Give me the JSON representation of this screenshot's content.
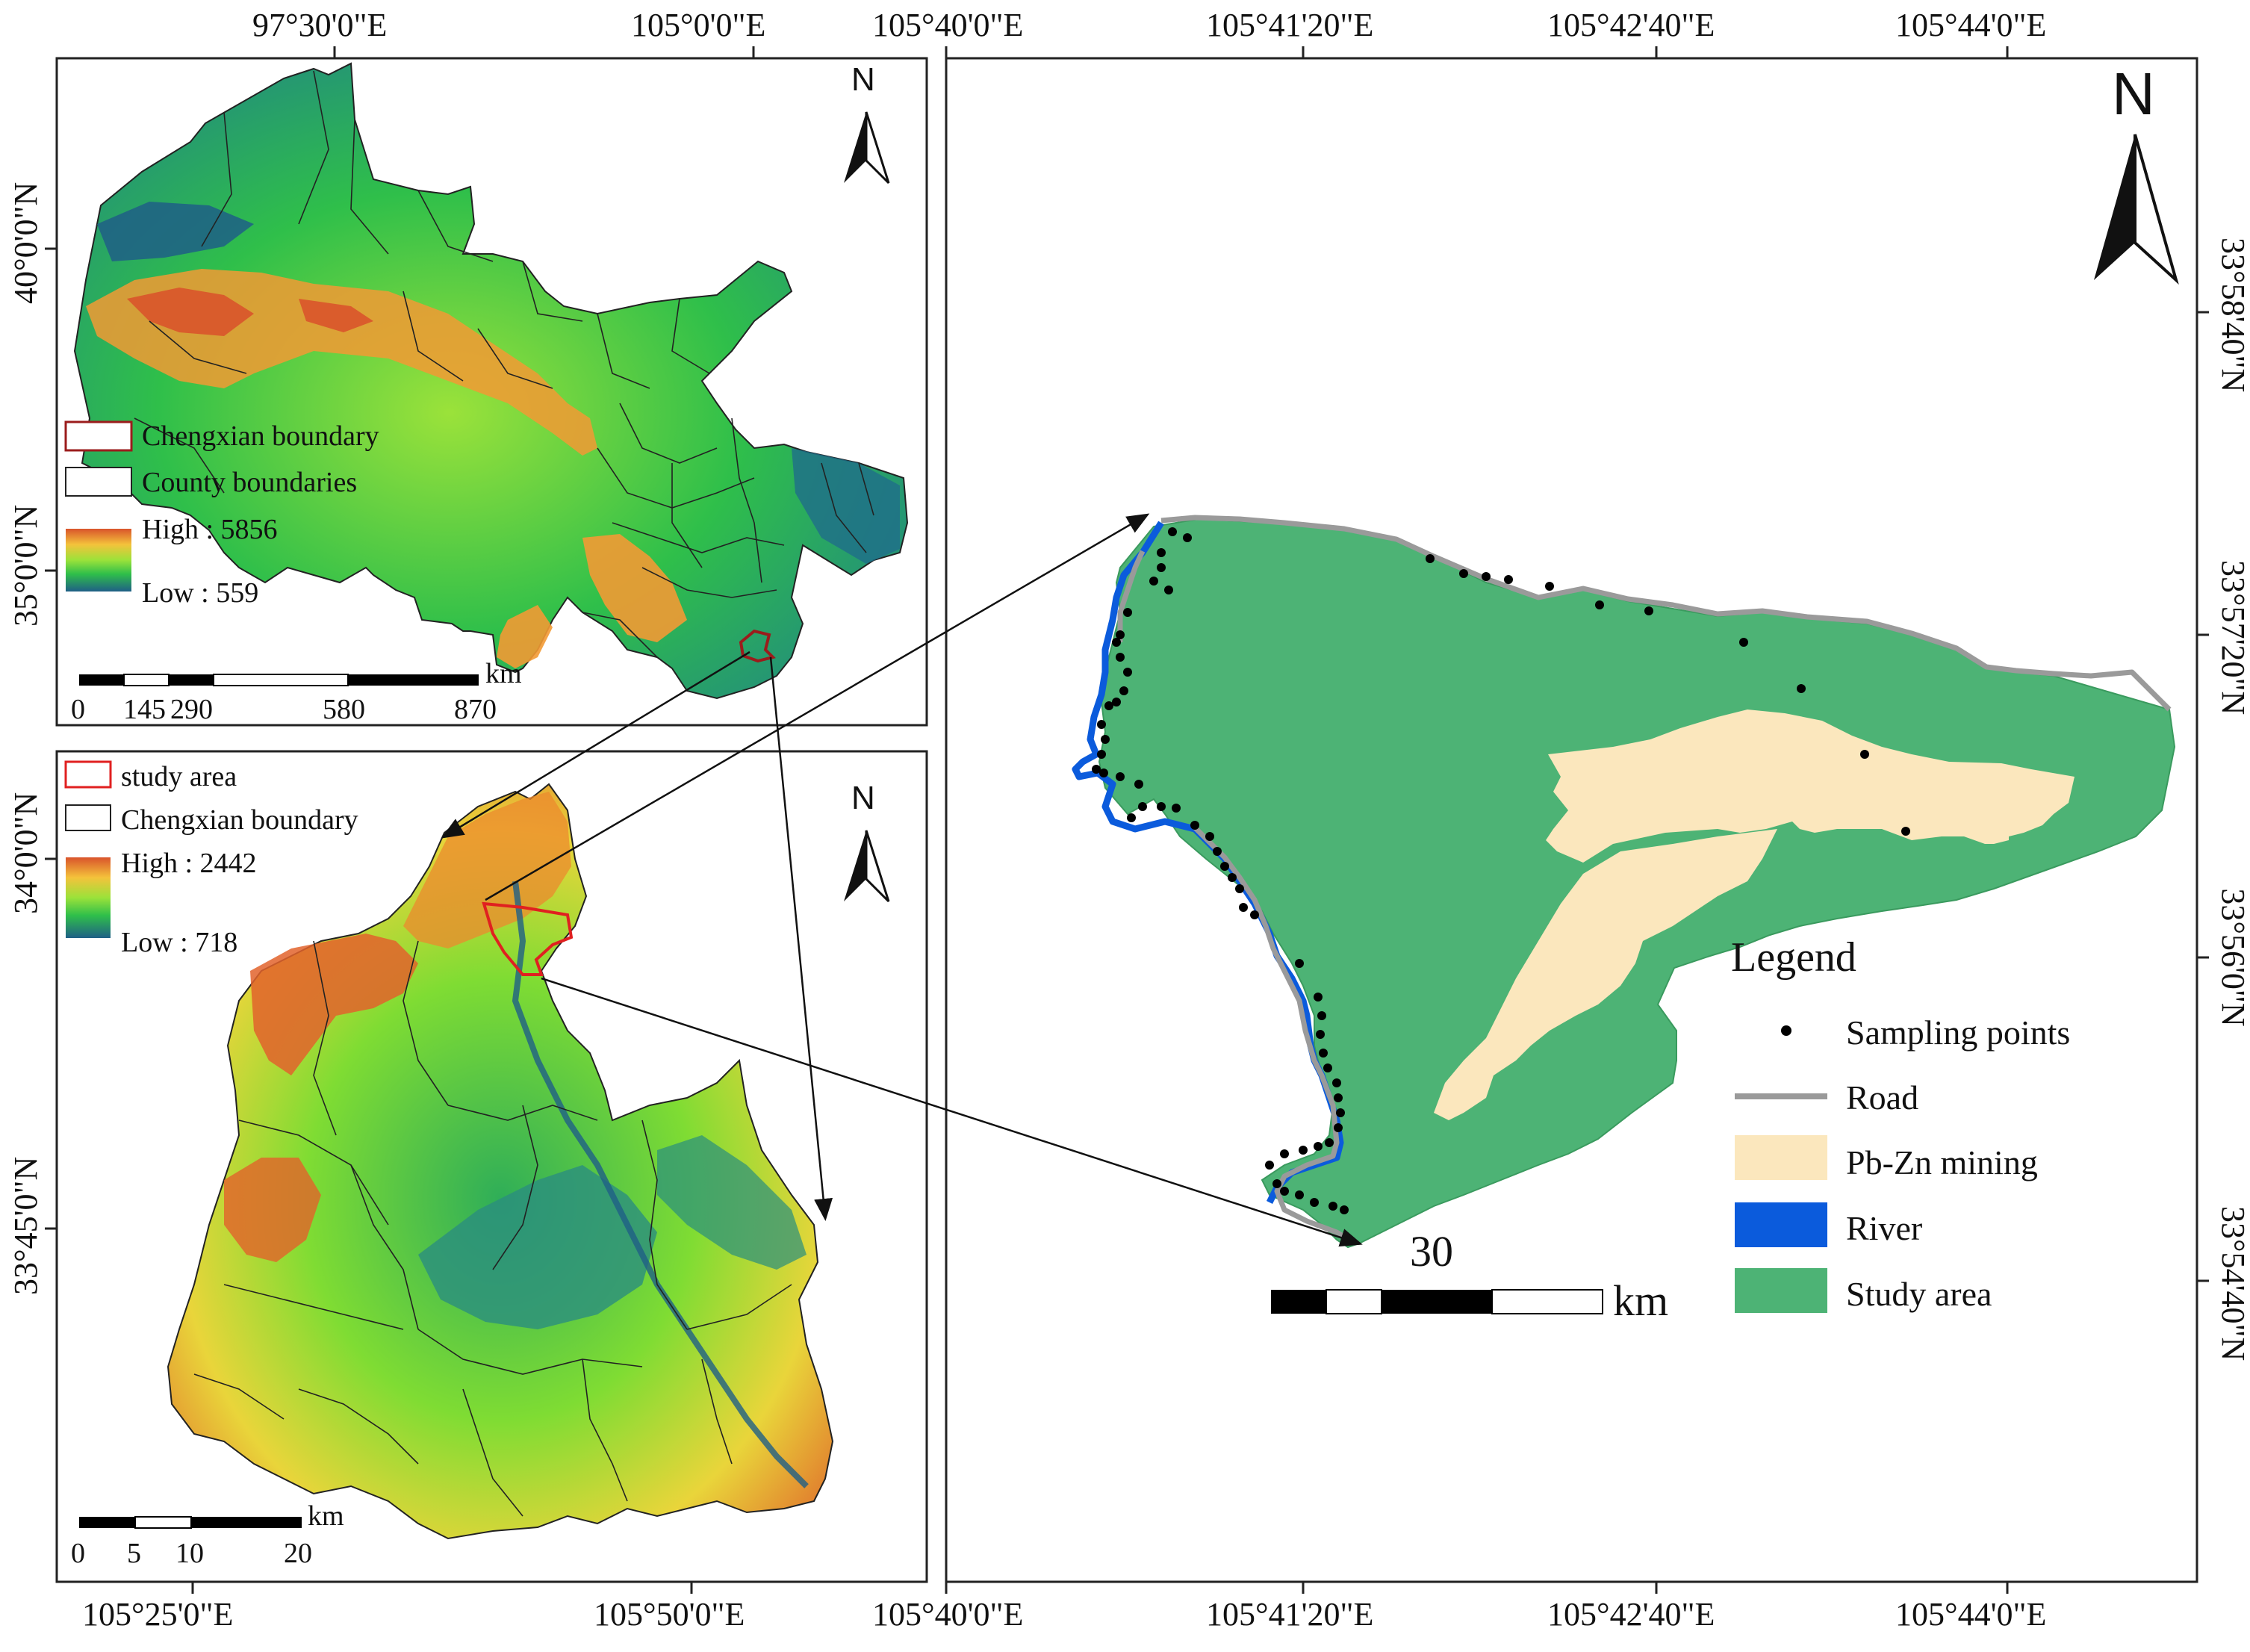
{
  "colors": {
    "frame": "#1a1a1a",
    "study_area": "#4db375",
    "mining": "#fbe7bd",
    "river": "#0b5bdc",
    "road": "#9a9a9a",
    "boundary_red": "#9b1c1c",
    "study_red": "#e02020",
    "dem_high": "#d9542b",
    "dem_mid1": "#f4c23b",
    "dem_mid2": "#9be23a",
    "dem_mid3": "#2fbf4a",
    "dem_low": "#1f6e8a"
  },
  "icons": {
    "north_arrow": "north-arrow-icon"
  },
  "top_map": {
    "top_ticks": [
      "97°30'0\"E",
      "105°0'0\"E"
    ],
    "left_ticks": [
      "40°0'0\"N",
      "35°0'0\"N"
    ],
    "north_label": "N",
    "legend": {
      "item1": "Chengxian boundary",
      "item2": "County boundaries",
      "high": "High : 5856",
      "low": "Low : 559"
    },
    "scale": {
      "unit": "km",
      "labels": [
        "0",
        "145",
        "290",
        "580",
        "870"
      ]
    }
  },
  "bottom_map": {
    "bottom_ticks": [
      "105°25'0\"E",
      "105°50'0\"E"
    ],
    "left_ticks": [
      "34°0'0\"N",
      "33°45'0\"N"
    ],
    "north_label": "N",
    "legend": {
      "item1": "study area",
      "item2": "Chengxian boundary",
      "high": "High : 2442",
      "low": "Low : 718"
    },
    "scale": {
      "unit": "km",
      "labels": [
        "0",
        "5",
        "10",
        "20"
      ]
    }
  },
  "right_map": {
    "top_ticks": [
      "105°40'0\"E",
      "105°41'20\"E",
      "105°42'40\"E",
      "105°44'0\"E"
    ],
    "bottom_ticks": [
      "105°40'0\"E",
      "105°41'20\"E",
      "105°42'40\"E",
      "105°44'0\"E"
    ],
    "right_ticks": [
      "33°58'40\"N",
      "33°57'20\"N",
      "33°56'0\"N",
      "33°54'40\"N"
    ],
    "north_label": "N",
    "legend": {
      "title": "Legend",
      "items": [
        "Sampling points",
        "Road",
        "Pb-Zn mining",
        "River",
        "Study area"
      ]
    },
    "scale": {
      "number": "30",
      "unit": "km"
    }
  }
}
